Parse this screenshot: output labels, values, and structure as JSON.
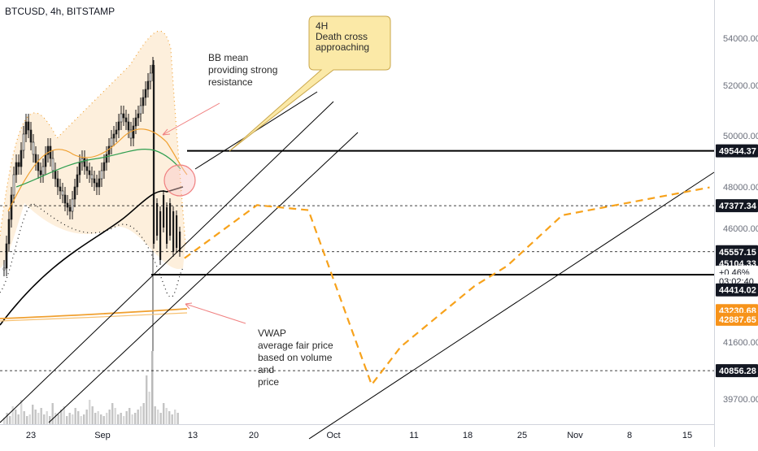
{
  "chart_data": {
    "type": "line",
    "title": "BTCUSD, 4h, BITSTAMP",
    "x_ticks": [
      "23",
      "Sep",
      "13",
      "20",
      "Oct",
      "11",
      "18",
      "25",
      "Nov",
      "8",
      "15"
    ],
    "y_ticks": [
      "54000.00",
      "52000.00",
      "50000.00",
      "48000.00",
      "46000.00",
      "41600.00",
      "39700.00"
    ],
    "y_range": [
      39200,
      55200
    ],
    "price_tags": [
      {
        "label": "49544.37",
        "value": 49544.37,
        "style": "dark"
      },
      {
        "label": "47377.34",
        "value": 47377.34,
        "style": "dark"
      },
      {
        "label": "45557.15",
        "value": 45557.15,
        "style": "dark"
      },
      {
        "label": "45104.33",
        "value": 45104.33,
        "style": "dark"
      },
      {
        "label": "+0.46%",
        "value": 44750,
        "style": "dark"
      },
      {
        "label": "03:02:40",
        "value": 44400,
        "style": "dark"
      },
      {
        "label": "44414.02",
        "value": 44050,
        "style": "dark"
      },
      {
        "label": "43230.68",
        "value": 43230.68,
        "style": "orange"
      },
      {
        "label": "42887.65",
        "value": 42887.65,
        "style": "orange"
      },
      {
        "label": "40856.28",
        "value": 40856.28,
        "style": "dark"
      }
    ],
    "horizontal_levels": [
      {
        "value": 49544.37,
        "style": "solid"
      },
      {
        "value": 44650,
        "style": "solid"
      },
      {
        "value": 47377.34,
        "style": "dashed"
      },
      {
        "value": 45557.15,
        "style": "dashed"
      },
      {
        "value": 40856.28,
        "style": "dashed"
      }
    ],
    "annotations": {
      "callout": "4H\nDeath cross\napproaching",
      "bb_note": "BB mean\nproviding strong\nresistance",
      "vwap_note": "VWAP\naverage fair price\nbased on volume\nand\nprice"
    },
    "projection_path": [
      [
        46000,
        45300
      ],
      [
        49300,
        47400
      ],
      [
        49700,
        47200
      ],
      [
        41600,
        40300
      ],
      [
        42000,
        41800
      ],
      [
        45900,
        44200
      ],
      [
        47100,
        45000
      ],
      [
        49500,
        47000
      ],
      [
        52200,
        48100
      ]
    ],
    "colors": {
      "projection": "#f7a21b",
      "candles": "#1a1a1a",
      "ma_black": "#000000",
      "ma_orange": "#f0a030",
      "ma_green": "#2e9e4f",
      "bb_fill": "#fdebd3",
      "annotation_arrow": "#f08080",
      "callout_bg": "#fbe9a7",
      "callout_border": "#c9a64a",
      "tag_dark": "#131722",
      "tag_orange": "#f7931a"
    }
  }
}
